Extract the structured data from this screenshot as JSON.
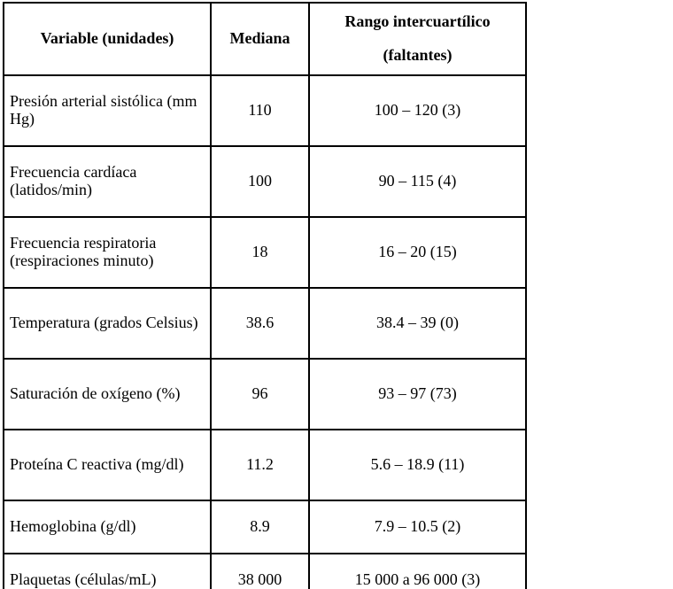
{
  "table": {
    "headers": {
      "variable": "Variable (unidades)",
      "mediana": "Mediana",
      "rango_line1": "Rango intercuartílico",
      "rango_line2": "(faltantes)"
    },
    "rows": [
      {
        "variable": "Presión arterial sistólica (mm Hg)",
        "mediana": "110",
        "rango": "100 – 120 (3)"
      },
      {
        "variable": "Frecuencia cardíaca (latidos/min)",
        "mediana": "100",
        "rango": "90 – 115 (4)"
      },
      {
        "variable": "Frecuencia respiratoria (respiraciones minuto)",
        "mediana": "18",
        "rango": "16 – 20 (15)"
      },
      {
        "variable": "Temperatura (grados Celsius)",
        "mediana": "38.6",
        "rango": "38.4 – 39 (0)"
      },
      {
        "variable": "Saturación de oxígeno (%)",
        "mediana": "96",
        "rango": "93 – 97 (73)"
      },
      {
        "variable": "Proteína C reactiva (mg/dl)",
        "mediana": "11.2",
        "rango": "5.6 – 18.9 (11)"
      },
      {
        "variable": "Hemoglobina (g/dl)",
        "mediana": "8.9",
        "rango": "7.9 – 10.5 (2)"
      },
      {
        "variable": "Plaquetas (células/mL)",
        "mediana": "38 000",
        "rango": "15 000 a 96 000 (3)"
      }
    ],
    "border_color": "#000000",
    "background_color": "#ffffff"
  }
}
